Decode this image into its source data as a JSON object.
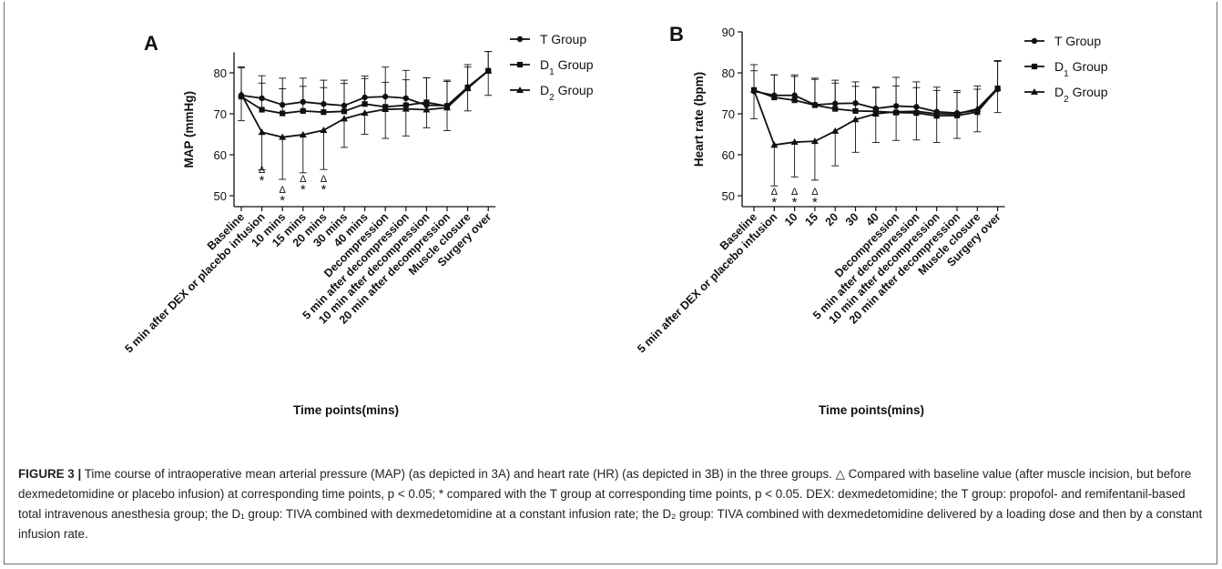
{
  "colors": {
    "ink": "#111111",
    "frame": "#6d6d6d"
  },
  "caption": {
    "label": "FIGURE 3 |",
    "text": " Time course of intraoperative mean arterial pressure (MAP) (as depicted in 3A) and heart rate (HR) (as depicted in 3B) in the three groups. △ Compared with baseline value (after muscle incision, but before dexmedetomidine or placebo infusion) at corresponding time points, p < 0.05; * compared with the T group at corresponding time points, p < 0.05. DEX: dexmedetomidine; the T group: propofol- and remifentanil-based total intravenous anesthesia group; the D₁ group: TIVA combined with dexmedetomidine at a constant infusion rate; the D₂ group: TIVA combined with dexmedetomidine delivered by a loading dose and then by a constant infusion rate."
  },
  "chart_data": [
    {
      "type": "line",
      "panel": "A",
      "ylabel": "MAP (mmHg)",
      "xlabel": "Time points(mins)",
      "ylim": [
        45,
        85
      ],
      "yticks": [
        50,
        60,
        70,
        80
      ],
      "categories": [
        "Baseline",
        "5 min after DEX or placebo infusion",
        "10 mins",
        "15 mins",
        "20 mins",
        "30 mins",
        "40 mins",
        "Decompression",
        "5 min after decompression",
        "10 min after decompression",
        "20 min after decompression",
        "Muscle closure",
        "Surgery over"
      ],
      "legend_position": "right",
      "series": [
        {
          "name": "T Group",
          "marker": "circle",
          "values": [
            74.5,
            73.8,
            72.2,
            72.9,
            72.4,
            72.0,
            74.0,
            74.2,
            73.8,
            72.1,
            72.0,
            76.5,
            80.5
          ],
          "err": [
            7,
            5.5,
            6.5,
            5.8,
            5.8,
            6.2,
            5.2,
            7.2,
            6.8,
            6.7,
            6.2,
            5.5,
            4.7
          ]
        },
        {
          "name": "D₁ Group",
          "marker": "square",
          "values": [
            74.2,
            71.0,
            70.1,
            70.7,
            70.4,
            70.6,
            72.4,
            71.7,
            72.1,
            72.8,
            71.9,
            76.4,
            80.5
          ],
          "err": [
            7,
            6.5,
            6.0,
            6.0,
            6.0,
            6.8,
            6.2,
            6.0,
            6.2,
            6.0,
            6.0,
            5.0,
            4.7
          ]
        },
        {
          "name": "D₂ Group",
          "marker": "triangle",
          "values": [
            74.8,
            65.5,
            64.3,
            64.9,
            66.0,
            68.8,
            70.2,
            71.1,
            71.2,
            71.0,
            71.5,
            76.2,
            80.5
          ],
          "err": [
            6.5,
            9.2,
            10.3,
            9.3,
            9.6,
            7.0,
            5.2,
            7.1,
            6.6,
            4.4,
            5.6,
            5.5,
            6.0
          ]
        }
      ],
      "annotations": [
        {
          "category": "5 min after DEX or placebo infusion",
          "marks": [
            "Δ",
            "*"
          ]
        },
        {
          "category": "10 mins",
          "marks": [
            "Δ",
            "*"
          ]
        },
        {
          "category": "15 mins",
          "marks": [
            "Δ",
            "*"
          ]
        },
        {
          "category": "20 mins",
          "marks": [
            "Δ",
            "*"
          ]
        }
      ]
    },
    {
      "type": "line",
      "panel": "B",
      "ylabel": "Heart rate (bpm)",
      "xlabel": "Time points(mins)",
      "ylim": [
        45,
        90
      ],
      "yticks": [
        50,
        60,
        70,
        80,
        90
      ],
      "categories": [
        "Baseline",
        "5 min after DEX or placebo infusion",
        "10",
        "15",
        "20",
        "30",
        "40",
        "Decompression",
        "5 min after decompression",
        "10 min after decompression",
        "20 min after decompression",
        "Muscle closure",
        "Surgery over"
      ],
      "legend_position": "right",
      "series": [
        {
          "name": "T Group",
          "marker": "circle",
          "values": [
            75.5,
            74.5,
            74.5,
            72.2,
            72.5,
            72.6,
            71.3,
            71.9,
            71.7,
            70.5,
            70.2,
            70.8,
            76.0
          ],
          "err": [
            5.0,
            5.0,
            5.0,
            6.5,
            5.7,
            5.2,
            5.2,
            7.0,
            6.1,
            6.0,
            5.5,
            6.0,
            7.0
          ]
        },
        {
          "name": "D₁ Group",
          "marker": "square",
          "values": [
            75.8,
            74.0,
            73.3,
            72.1,
            71.2,
            70.7,
            70.6,
            70.3,
            70.2,
            69.5,
            69.6,
            70.4,
            76.2
          ],
          "err": [
            6.2,
            5.5,
            5.8,
            6.3,
            6.3,
            6.0,
            5.8,
            6.5,
            6.2,
            6.2,
            5.6,
            5.6,
            6.6
          ]
        },
        {
          "name": "D₂ Group",
          "marker": "triangle",
          "values": [
            75.8,
            62.4,
            63.1,
            63.3,
            65.8,
            68.6,
            70.0,
            70.5,
            70.6,
            70.0,
            70.0,
            71.2,
            76.3
          ],
          "err": [
            7.0,
            10.0,
            8.5,
            9.5,
            8.5,
            8.0,
            7.0,
            7.0,
            7.0,
            7.0,
            6.0,
            5.6,
            6.0
          ]
        }
      ],
      "annotations": [
        {
          "category": "5 min after DEX or placebo infusion",
          "marks": [
            "Δ",
            "*"
          ]
        },
        {
          "category": "10",
          "marks": [
            "Δ",
            "*"
          ]
        },
        {
          "category": "15",
          "marks": [
            "Δ",
            "*"
          ]
        }
      ]
    }
  ]
}
